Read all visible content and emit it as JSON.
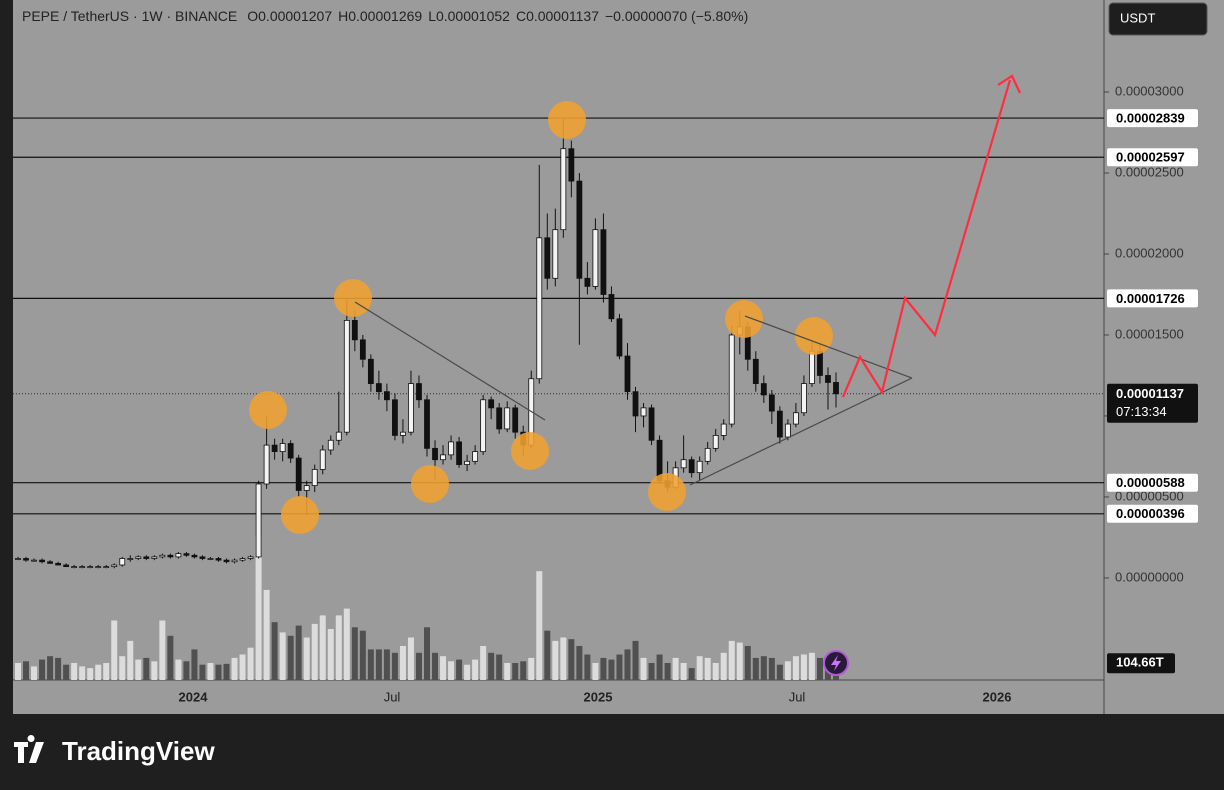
{
  "header": {
    "symbol": "PEPE / TetherUS · 1W · BINANCE",
    "open": "O0.00001207",
    "high": "H0.00001269",
    "low": "L0.00001052",
    "close": "C0.00001137",
    "change": "−0.00000070 (−5.80%)"
  },
  "currency": "USDT",
  "brand": "TradingView",
  "chart_data": {
    "type": "candlestick",
    "ylim": [
      -6.3e-06,
      3.568e-05
    ],
    "yticks": [
      {
        "value": 3e-05,
        "label": "0.00003000"
      },
      {
        "value": 2.5e-05,
        "label": "0.00002500"
      },
      {
        "value": 2e-05,
        "label": "0.00002000"
      },
      {
        "value": 1.5e-05,
        "label": "0.00001500"
      },
      {
        "value": 1e-05,
        "label": "0.00001000"
      },
      {
        "value": 5e-06,
        "label": "0.00000500"
      },
      {
        "value": 0,
        "label": "0.00000000"
      }
    ],
    "levels": [
      {
        "value": 2.839e-05,
        "label": "0.00002839"
      },
      {
        "value": 2.597e-05,
        "label": "0.00002597"
      },
      {
        "value": 1.726e-05,
        "label": "0.00001726"
      },
      {
        "value": 5.88e-06,
        "label": "0.00000588"
      },
      {
        "value": 3.96e-06,
        "label": "0.00000396"
      }
    ],
    "last_price": {
      "value": 1.137e-05,
      "label": "0.00001137"
    },
    "countdown": "07:13:34",
    "xticks": [
      "2024",
      "Jul",
      "2025",
      "Jul",
      "2026"
    ],
    "volume_lim": [
      0,
      4000
    ],
    "volume_label": "104.66T",
    "candles": [
      [
        1.2e-06,
        1.3e-06,
        1.1e-06,
        1.2e-06
      ],
      [
        1.2e-06,
        1.3e-06,
        1e-06,
        1.1e-06
      ],
      [
        1.1e-06,
        1.2e-06,
        1e-06,
        1.1e-06
      ],
      [
        1.1e-06,
        1.2e-06,
        9e-07,
        1e-06
      ],
      [
        1e-06,
        1.1e-06,
        9e-07,
        9e-07
      ],
      [
        9e-07,
        1e-06,
        8e-07,
        8e-07
      ],
      [
        8e-07,
        9e-07,
        7e-07,
        7e-07
      ],
      [
        7e-07,
        8e-07,
        6e-07,
        7e-07
      ],
      [
        7e-07,
        8e-07,
        6e-07,
        7e-07
      ],
      [
        7e-07,
        8e-07,
        6e-07,
        7e-07
      ],
      [
        7e-07,
        8e-07,
        6e-07,
        7e-07
      ],
      [
        7e-07,
        8e-07,
        6e-07,
        7e-07
      ],
      [
        7e-07,
        9e-07,
        6e-07,
        8e-07
      ],
      [
        8e-07,
        1.3e-06,
        7e-07,
        1.2e-06
      ],
      [
        1.2e-06,
        1.4e-06,
        1e-06,
        1.2e-06
      ],
      [
        1.2e-06,
        1.4e-06,
        1.1e-06,
        1.3e-06
      ],
      [
        1.3e-06,
        1.4e-06,
        1.1e-06,
        1.2e-06
      ],
      [
        1.2e-06,
        1.4e-06,
        1.1e-06,
        1.3e-06
      ],
      [
        1.3e-06,
        1.5e-06,
        1.2e-06,
        1.4e-06
      ],
      [
        1.4e-06,
        1.5e-06,
        1.2e-06,
        1.3e-06
      ],
      [
        1.3e-06,
        1.6e-06,
        1.2e-06,
        1.5e-06
      ],
      [
        1.5e-06,
        1.6e-06,
        1.3e-06,
        1.4e-06
      ],
      [
        1.4e-06,
        1.5e-06,
        1.2e-06,
        1.3e-06
      ],
      [
        1.3e-06,
        1.4e-06,
        1.1e-06,
        1.2e-06
      ],
      [
        1.2e-06,
        1.3e-06,
        1.1e-06,
        1.2e-06
      ],
      [
        1.2e-06,
        1.3e-06,
        1e-06,
        1.1e-06
      ],
      [
        1.1e-06,
        1.2e-06,
        9e-07,
        1e-06
      ],
      [
        1e-06,
        1.2e-06,
        9e-07,
        1.1e-06
      ],
      [
        1.1e-06,
        1.3e-06,
        1e-06,
        1.2e-06
      ],
      [
        1.2e-06,
        1.4e-06,
        1.1e-06,
        1.3e-06
      ],
      [
        1.3e-06,
        6e-06,
        1.2e-06,
        5.8e-06
      ],
      [
        5.8e-06,
        1e-05,
        5.5e-06,
        8.2e-06
      ],
      [
        8.2e-06,
        8.6e-06,
        7.3e-06,
        7.8e-06
      ],
      [
        7.8e-06,
        8.6e-06,
        7.2e-06,
        8.3e-06
      ],
      [
        8.3e-06,
        8.5e-06,
        7.1e-06,
        7.4e-06
      ],
      [
        7.4e-06,
        7.6e-06,
        5e-06,
        5.4e-06
      ],
      [
        5.4e-06,
        6e-06,
        3.9e-06,
        5.7e-06
      ],
      [
        5.7e-06,
        7e-06,
        5.3e-06,
        6.7e-06
      ],
      [
        6.7e-06,
        8.2e-06,
        6.4e-06,
        7.9e-06
      ],
      [
        7.9e-06,
        8.8e-06,
        7.6e-06,
        8.5e-06
      ],
      [
        8.5e-06,
        1.15e-05,
        8.2e-06,
        9e-06
      ],
      [
        9e-06,
        1.72e-05,
        8.8e-06,
        1.59e-05
      ],
      [
        1.59e-05,
        1.65e-05,
        1.4e-05,
        1.47e-05
      ],
      [
        1.47e-05,
        1.5e-05,
        1.3e-05,
        1.35e-05
      ],
      [
        1.35e-05,
        1.38e-05,
        1.15e-05,
        1.2e-05
      ],
      [
        1.2e-05,
        1.28e-05,
        1.1e-05,
        1.15e-05
      ],
      [
        1.15e-05,
        1.2e-05,
        1.03e-05,
        1.1e-05
      ],
      [
        1.1e-05,
        1.14e-05,
        8.5e-06,
        8.8e-06
      ],
      [
        8.8e-06,
        9.8e-06,
        8.3e-06,
        9e-06
      ],
      [
        9e-06,
        1.28e-05,
        8.8e-06,
        1.2e-05
      ],
      [
        1.2e-05,
        1.25e-05,
        1.05e-05,
        1.1e-05
      ],
      [
        1.1e-05,
        1.13e-05,
        7.5e-06,
        8e-06
      ],
      [
        8e-06,
        8.5e-06,
        6e-06,
        7.3e-06
      ],
      [
        7.3e-06,
        8.2e-06,
        7e-06,
        7.6e-06
      ],
      [
        7.6e-06,
        8.8e-06,
        7.3e-06,
        8.4e-06
      ],
      [
        8.4e-06,
        8.7e-06,
        6.8e-06,
        7e-06
      ],
      [
        7e-06,
        7.6e-06,
        6.6e-06,
        7.2e-06
      ],
      [
        7.2e-06,
        8.2e-06,
        7e-06,
        7.8e-06
      ],
      [
        7.8e-06,
        1.13e-05,
        7.6e-06,
        1.1e-05
      ],
      [
        1.1e-05,
        1.12e-05,
        9.8e-06,
        1.05e-05
      ],
      [
        1.05e-05,
        1.08e-05,
        8.9e-06,
        9.2e-06
      ],
      [
        9.2e-06,
        1.09e-05,
        9e-06,
        1.05e-05
      ],
      [
        1.05e-05,
        1.07e-05,
        8.6e-06,
        9e-06
      ],
      [
        9e-06,
        9.4e-06,
        7.5e-06,
        8.2e-06
      ],
      [
        8.2e-06,
        1.28e-05,
        8e-06,
        1.23e-05
      ],
      [
        1.23e-05,
        2.55e-05,
        1.2e-05,
        2.1e-05
      ],
      [
        2.1e-05,
        2.25e-05,
        1.78e-05,
        1.85e-05
      ],
      [
        1.85e-05,
        2.28e-05,
        1.8e-05,
        2.15e-05
      ],
      [
        2.15e-05,
        2.84e-05,
        2.1e-05,
        2.65e-05
      ],
      [
        2.65e-05,
        2.7e-05,
        2.35e-05,
        2.45e-05
      ],
      [
        2.45e-05,
        2.5e-05,
        1.44e-05,
        1.85e-05
      ],
      [
        1.85e-05,
        1.95e-05,
        1.75e-05,
        1.8e-05
      ],
      [
        1.8e-05,
        2.22e-05,
        1.78e-05,
        2.15e-05
      ],
      [
        2.15e-05,
        2.25e-05,
        1.7e-05,
        1.75e-05
      ],
      [
        1.75e-05,
        1.8e-05,
        1.58e-05,
        1.6e-05
      ],
      [
        1.6e-05,
        1.63e-05,
        1.35e-05,
        1.37e-05
      ],
      [
        1.37e-05,
        1.45e-05,
        1.1e-05,
        1.15e-05
      ],
      [
        1.15e-05,
        1.18e-05,
        9e-06,
        1e-05
      ],
      [
        1e-05,
        1.08e-05,
        9.3e-06,
        1.05e-05
      ],
      [
        1.05e-05,
        1.07e-05,
        8.2e-06,
        8.5e-06
      ],
      [
        8.5e-06,
        8.8e-06,
        5.8e-06,
        6e-06
      ],
      [
        6e-06,
        7.2e-06,
        5.3e-06,
        5.6e-06
      ],
      [
        5.6e-06,
        7.2e-06,
        5.5e-06,
        6.8e-06
      ],
      [
        6.8e-06,
        8.8e-06,
        6.5e-06,
        7.3e-06
      ],
      [
        7.3e-06,
        7.5e-06,
        6.2e-06,
        6.5e-06
      ],
      [
        6.5e-06,
        7.5e-06,
        6e-06,
        7.2e-06
      ],
      [
        7.2e-06,
        8.4e-06,
        7e-06,
        8e-06
      ],
      [
        8e-06,
        9.2e-06,
        7.8e-06,
        8.8e-06
      ],
      [
        8.8e-06,
        9.8e-06,
        8.5e-06,
        9.5e-06
      ],
      [
        9.5e-06,
        1.56e-05,
        9.3e-06,
        1.5e-05
      ],
      [
        1.5e-05,
        1.65e-05,
        1.38e-05,
        1.55e-05
      ],
      [
        1.55e-05,
        1.58e-05,
        1.28e-05,
        1.35e-05
      ],
      [
        1.35e-05,
        1.4e-05,
        1.15e-05,
        1.2e-05
      ],
      [
        1.2e-05,
        1.25e-05,
        1.08e-05,
        1.13e-05
      ],
      [
        1.13e-05,
        1.16e-05,
        9.5e-06,
        1.03e-05
      ],
      [
        1.03e-05,
        1.06e-05,
        8.3e-06,
        8.7e-06
      ],
      [
        8.7e-06,
        9.8e-06,
        8.5e-06,
        9.5e-06
      ],
      [
        9.5e-06,
        1.08e-05,
        9.3e-06,
        1.02e-05
      ],
      [
        1.02e-05,
        1.25e-05,
        1e-05,
        1.2e-05
      ],
      [
        1.2e-05,
        1.46e-05,
        1.18e-05,
        1.4e-05
      ],
      [
        1.4e-05,
        1.45e-05,
        1.2e-05,
        1.25e-05
      ],
      [
        1.25e-05,
        1.3e-05,
        1.04e-05,
        1.207e-05
      ],
      [
        1.207e-05,
        1.269e-05,
        1.052e-05,
        1.137e-05
      ]
    ],
    "volumes": [
      100,
      110,
      80,
      120,
      140,
      130,
      90,
      100,
      80,
      70,
      90,
      100,
      350,
      140,
      230,
      120,
      130,
      110,
      350,
      260,
      120,
      110,
      180,
      90,
      100,
      90,
      95,
      130,
      150,
      190,
      850,
      530,
      340,
      280,
      260,
      320,
      250,
      330,
      380,
      300,
      380,
      420,
      310,
      290,
      180,
      180,
      180,
      160,
      200,
      250,
      160,
      310,
      160,
      140,
      110,
      120,
      90,
      120,
      200,
      160,
      150,
      100,
      100,
      110,
      130,
      640,
      290,
      230,
      250,
      240,
      200,
      150,
      100,
      130,
      120,
      150,
      180,
      230,
      130,
      100,
      150,
      100,
      130,
      100,
      70,
      140,
      130,
      100,
      160,
      230,
      220,
      200,
      130,
      140,
      130,
      90,
      110,
      140,
      150,
      160,
      130,
      110,
      104.66
    ]
  }
}
